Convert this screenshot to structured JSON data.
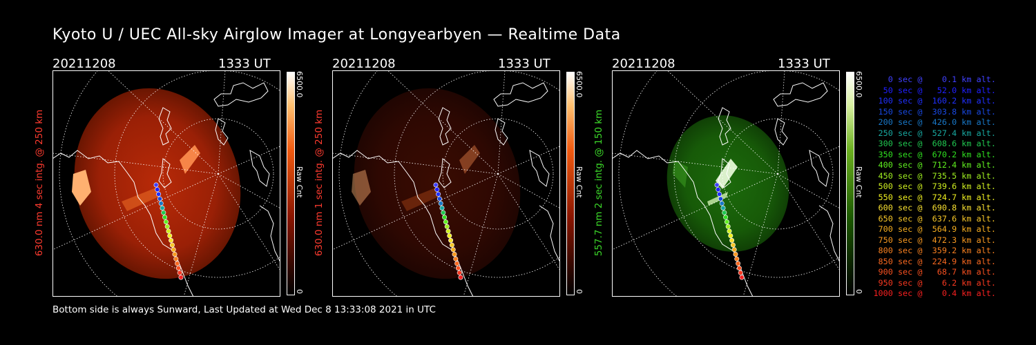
{
  "title": "Kyoto U / UEC All-sky Airglow Imager at Longyearbyen — Realtime Data",
  "footer": "Bottom side is always Sunward, Last Updated at Wed Dec  8 13:33:08 2021 in UTC",
  "colors": {
    "red_label": "#ff3b2f",
    "green_label": "#3ddc2a"
  },
  "chart_data": [
    {
      "type": "heatmap",
      "date": "20211208",
      "time": "1333 UT",
      "side_label": "630.0 nm 4 sec intg. @ 250 km",
      "colorbar": {
        "max": "6500.0",
        "min": "0",
        "unit": "Raw Cnt"
      }
    },
    {
      "type": "heatmap",
      "date": "20211208",
      "time": "1333 UT",
      "side_label": "630.0 nm 1 sec intg. @ 250 km",
      "colorbar": {
        "max": "6500.0",
        "min": "0",
        "unit": "Raw Cnt"
      }
    },
    {
      "type": "heatmap",
      "date": "20211208",
      "time": "1333 UT",
      "side_label": "557.7 nm 2 sec intg. @ 150 km",
      "colorbar": {
        "max": "6500.0",
        "min": "0",
        "unit": "Raw Cnt"
      }
    }
  ],
  "trajectory": [
    {
      "label": "   0 sec @    0.1 km alt.",
      "color": "#4040ff"
    },
    {
      "label": "  50 sec @   52.0 km alt.",
      "color": "#2020ff"
    },
    {
      "label": " 100 sec @  160.2 km alt.",
      "color": "#2030ff"
    },
    {
      "label": " 150 sec @  303.8 km alt.",
      "color": "#1848e0"
    },
    {
      "label": " 200 sec @  426.0 km alt.",
      "color": "#1878c8"
    },
    {
      "label": " 250 sec @  527.4 km alt.",
      "color": "#18a8a0"
    },
    {
      "label": " 300 sec @  608.6 km alt.",
      "color": "#20c850"
    },
    {
      "label": " 350 sec @  670.2 km alt.",
      "color": "#30e020"
    },
    {
      "label": " 400 sec @  712.4 km alt.",
      "color": "#60f020"
    },
    {
      "label": " 450 sec @  735.5 km alt.",
      "color": "#a0f020"
    },
    {
      "label": " 500 sec @  739.6 km alt.",
      "color": "#d0f020"
    },
    {
      "label": " 550 sec @  724.7 km alt.",
      "color": "#f0f020"
    },
    {
      "label": " 600 sec @  690.8 km alt.",
      "color": "#f8e030"
    },
    {
      "label": " 650 sec @  637.6 km alt.",
      "color": "#f8c828"
    },
    {
      "label": " 700 sec @  564.9 km alt.",
      "color": "#f8b020"
    },
    {
      "label": " 750 sec @  472.3 km alt.",
      "color": "#f89820"
    },
    {
      "label": " 800 sec @  359.2 km alt.",
      "color": "#f88020"
    },
    {
      "label": " 850 sec @  224.9 km alt.",
      "color": "#f86820"
    },
    {
      "label": " 900 sec @   68.7 km alt.",
      "color": "#f85020"
    },
    {
      "label": " 950 sec @    6.2 km alt.",
      "color": "#f83820"
    },
    {
      "label": "1000 sec @    0.4 km alt.",
      "color": "#f82020"
    }
  ]
}
